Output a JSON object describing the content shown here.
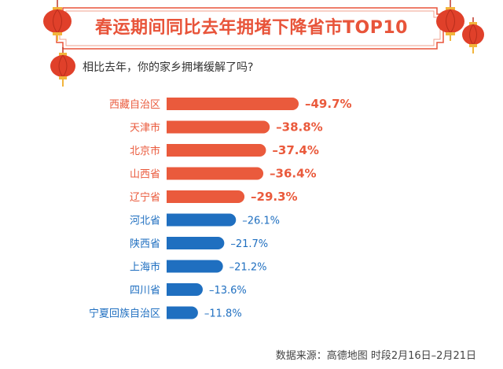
{
  "title": "春运期间同比去年拥堵下降省市TOP10",
  "subtitle": "相比去年，你的家乡拥堵缓解了吗?",
  "footer": "数据来源：高德地图    时段2月16日–2月21日",
  "colors": {
    "orange": "#ea5a3c",
    "blue": "#1f6fc0",
    "title": "#e8543a",
    "lantern": "#e0402a",
    "gold": "#f2b53c"
  },
  "chart_data": {
    "type": "bar",
    "orientation": "horizontal",
    "categories": [
      "西藏自治区",
      "天津市",
      "北京市",
      "山西省",
      "辽宁省",
      "河北省",
      "陕西省",
      "上海市",
      "四川省",
      "宁夏回族自治区"
    ],
    "values": [
      -49.7,
      -38.8,
      -37.4,
      -36.4,
      -29.3,
      -26.1,
      -21.7,
      -21.2,
      -13.6,
      -11.8
    ],
    "labels": [
      "–49.7%",
      "–38.8%",
      "–37.4%",
      "–36.4%",
      "–29.3%",
      "–26.1%",
      "–21.7%",
      "–21.2%",
      "–13.6%",
      "–11.8%"
    ],
    "highlight_top": 5,
    "title": "春运期间同比去年拥堵下降省市TOP10",
    "xlabel": "",
    "ylabel": ""
  }
}
